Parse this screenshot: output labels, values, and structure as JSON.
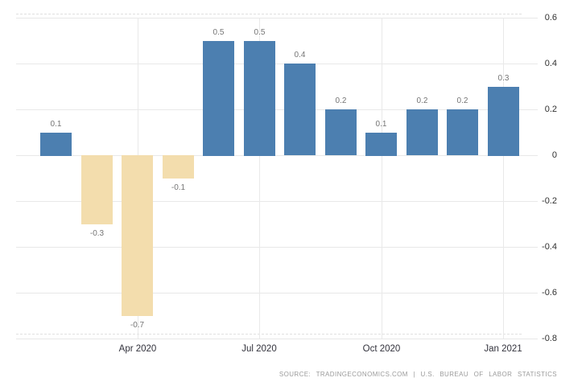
{
  "chart_data": {
    "type": "bar",
    "title": "",
    "xlabel": "",
    "ylabel": "",
    "values": [
      0.1,
      -0.3,
      -0.7,
      -0.1,
      0.5,
      0.5,
      0.4,
      0.2,
      0.1,
      0.2,
      0.2,
      0.3
    ],
    "data_labels": [
      "0.1",
      "-0.3",
      "-0.7",
      "-0.1",
      "0.5",
      "0.5",
      "0.4",
      "0.2",
      "0.1",
      "0.2",
      "0.2",
      "0.3"
    ],
    "x_ticks": [
      {
        "bar_index": 2,
        "label": "Apr 2020"
      },
      {
        "bar_index": 5,
        "label": "Jul 2020"
      },
      {
        "bar_index": 8,
        "label": "Oct 2020"
      },
      {
        "bar_index": 11,
        "label": "Jan 2021"
      }
    ],
    "y_ticks": [
      "0.6",
      "0.4",
      "0.2",
      "0",
      "-0.2",
      "-0.4",
      "-0.6",
      "-0.8"
    ],
    "ylim": [
      -0.8,
      0.6
    ],
    "y_axis_side": "right",
    "grid": "on",
    "legend": "none",
    "colors": {
      "positive_bar": "#4c7fb0",
      "negative_bar": "#f3ddad",
      "gridline": "#e8e8e8",
      "data_label": "#757575",
      "axis_label": "#32323c"
    }
  },
  "footer": {
    "source_text": "SOURCE: TRADINGECONOMICS.COM | U.S. BUREAU OF LABOR STATISTICS"
  }
}
